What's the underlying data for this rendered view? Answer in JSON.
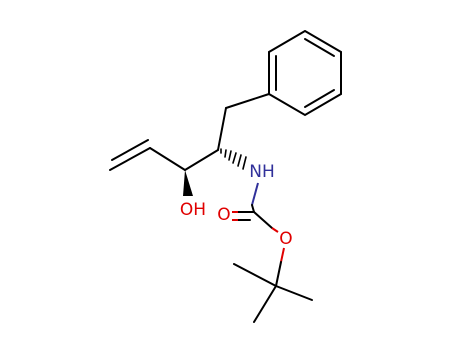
{
  "molecule": {
    "labels": {
      "hydroxyl": "OH",
      "amine": "NH",
      "carbonyl_oxygen": "O",
      "ester_oxygen": "O"
    }
  }
}
